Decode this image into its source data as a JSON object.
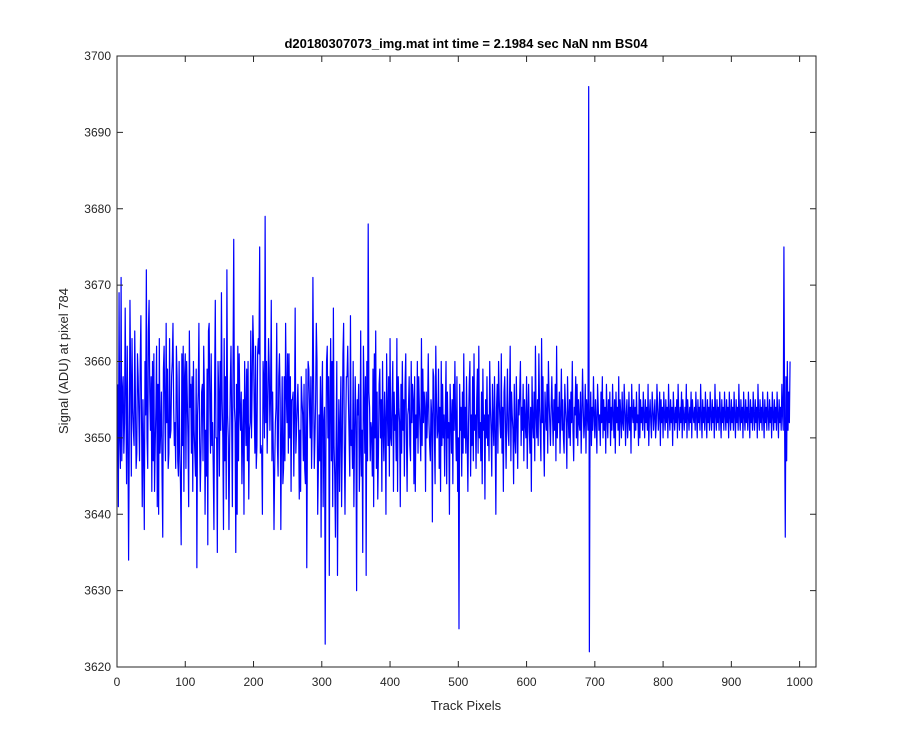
{
  "chart_data": {
    "type": "line",
    "title": "d20180307073_img.mat int time = 2.1984 sec  NaN nm BS04",
    "xlabel": "Track Pixels",
    "ylabel": "Signal (ADU) at pixel 784",
    "xlim": [
      0,
      1024
    ],
    "ylim": [
      3620,
      3700
    ],
    "xticks": [
      0,
      100,
      200,
      300,
      400,
      500,
      600,
      700,
      800,
      900,
      1000
    ],
    "yticks": [
      3620,
      3630,
      3640,
      3650,
      3660,
      3670,
      3680,
      3690,
      3700
    ],
    "grid": false,
    "line_color": "#0000ff",
    "n_points": 1024,
    "series": [
      {
        "name": "",
        "x_start": 1,
        "x_step": 1,
        "values": [
          3657,
          3641,
          3669,
          3650,
          3646,
          3671,
          3647,
          3656,
          3658,
          3648,
          3652,
          3667,
          3656,
          3644,
          3662,
          3650,
          3634,
          3650,
          3668,
          3658,
          3645,
          3663,
          3654,
          3651,
          3649,
          3664,
          3655,
          3646,
          3648,
          3661,
          3658,
          3653,
          3647,
          3660,
          3666,
          3652,
          3641,
          3655,
          3648,
          3638,
          3660,
          3653,
          3672,
          3650,
          3646,
          3664,
          3668,
          3656,
          3651,
          3658,
          3643,
          3660,
          3647,
          3661,
          3643,
          3649,
          3654,
          3662,
          3641,
          3657,
          3640,
          3663,
          3648,
          3651,
          3656,
          3645,
          3637,
          3659,
          3662,
          3654,
          3647,
          3665,
          3652,
          3659,
          3646,
          3648,
          3663,
          3650,
          3651,
          3658,
          3660,
          3665,
          3654,
          3649,
          3652,
          3646,
          3662,
          3658,
          3647,
          3645,
          3660,
          3648,
          3644,
          3636,
          3661,
          3649,
          3662,
          3643,
          3658,
          3661,
          3646,
          3660,
          3655,
          3650,
          3641,
          3664,
          3654,
          3657,
          3648,
          3658,
          3643,
          3660,
          3651,
          3648,
          3645,
          3659,
          3633,
          3653,
          3656,
          3665,
          3650,
          3643,
          3648,
          3656,
          3657,
          3647,
          3662,
          3656,
          3640,
          3651,
          3645,
          3659,
          3636,
          3664,
          3665,
          3654,
          3648,
          3661,
          3649,
          3652,
          3646,
          3638,
          3657,
          3668,
          3650,
          3650,
          3635,
          3660,
          3656,
          3645,
          3660,
          3651,
          3669,
          3655,
          3650,
          3638,
          3663,
          3647,
          3658,
          3642,
          3672,
          3653,
          3650,
          3638,
          3649,
          3657,
          3662,
          3652,
          3641,
          3660,
          3676,
          3654,
          3652,
          3635,
          3657,
          3640,
          3662,
          3647,
          3661,
          3654,
          3651,
          3656,
          3644,
          3650,
          3655,
          3640,
          3660,
          3654,
          3649,
          3659,
          3647,
          3660,
          3642,
          3651,
          3652,
          3664,
          3650,
          3657,
          3666,
          3662,
          3654,
          3648,
          3662,
          3646,
          3649,
          3661,
          3663,
          3661,
          3675,
          3648,
          3649,
          3648,
          3640,
          3660,
          3657,
          3650,
          3679,
          3652,
          3660,
          3648,
          3654,
          3663,
          3659,
          3651,
          3656,
          3668,
          3647,
          3656,
          3648,
          3638,
          3646,
          3652,
          3654,
          3665,
          3649,
          3645,
          3658,
          3661,
          3655,
          3638,
          3650,
          3658,
          3644,
          3646,
          3658,
          3647,
          3665,
          3656,
          3652,
          3661,
          3648,
          3661,
          3650,
          3658,
          3643,
          3655,
          3655,
          3656,
          3645,
          3653,
          3667,
          3648,
          3651,
          3654,
          3657,
          3652,
          3642,
          3651,
          3643,
          3658,
          3655,
          3653,
          3647,
          3657,
          3646,
          3644,
          3659,
          3633,
          3651,
          3660,
          3659,
          3654,
          3650,
          3658,
          3646,
          3652,
          3671,
          3658,
          3646,
          3650,
          3655,
          3665,
          3660,
          3640,
          3646,
          3653,
          3647,
          3658,
          3637,
          3655,
          3660,
          3641,
          3652,
          3654,
          3623,
          3648,
          3660,
          3662,
          3650,
          3658,
          3632,
          3655,
          3663,
          3647,
          3660,
          3641,
          3667,
          3649,
          3645,
          3637,
          3650,
          3660,
          3632,
          3647,
          3655,
          3643,
          3652,
          3658,
          3641,
          3649,
          3661,
          3665,
          3649,
          3640,
          3651,
          3658,
          3658,
          3662,
          3655,
          3650,
          3645,
          3666,
          3649,
          3651,
          3646,
          3660,
          3641,
          3650,
          3658,
          3652,
          3630,
          3655,
          3653,
          3657,
          3643,
          3648,
          3664,
          3645,
          3651,
          3635,
          3662,
          3655,
          3648,
          3658,
          3632,
          3660,
          3647,
          3678,
          3656,
          3654,
          3647,
          3652,
          3651,
          3645,
          3659,
          3641,
          3661,
          3650,
          3664,
          3646,
          3656,
          3642,
          3648,
          3657,
          3659,
          3650,
          3655,
          3643,
          3660,
          3651,
          3647,
          3656,
          3652,
          3640,
          3661,
          3654,
          3649,
          3658,
          3645,
          3663,
          3650,
          3649,
          3655,
          3660,
          3643,
          3656,
          3651,
          3653,
          3647,
          3663,
          3643,
          3658,
          3654,
          3652,
          3641,
          3657,
          3648,
          3660,
          3651,
          3655,
          3645,
          3657,
          3661,
          3650,
          3643,
          3653,
          3654,
          3658,
          3649,
          3647,
          3660,
          3652,
          3657,
          3655,
          3644,
          3658,
          3643,
          3653,
          3650,
          3660,
          3648,
          3658,
          3654,
          3651,
          3647,
          3663,
          3649,
          3659,
          3652,
          3656,
          3654,
          3643,
          3656,
          3650,
          3654,
          3661,
          3652,
          3649,
          3647,
          3655,
          3653,
          3639,
          3659,
          3658,
          3650,
          3644,
          3662,
          3655,
          3650,
          3651,
          3659,
          3646,
          3654,
          3643,
          3660,
          3649,
          3657,
          3650,
          3653,
          3645,
          3653,
          3660,
          3644,
          3656,
          3650,
          3652,
          3640,
          3657,
          3653,
          3648,
          3655,
          3644,
          3657,
          3651,
          3660,
          3652,
          3647,
          3658,
          3643,
          3650,
          3625,
          3657,
          3651,
          3654,
          3645,
          3656,
          3648,
          3661,
          3650,
          3654,
          3648,
          3658,
          3650,
          3643,
          3652,
          3657,
          3660,
          3645,
          3653,
          3649,
          3658,
          3647,
          3661,
          3651,
          3653,
          3646,
          3655,
          3659,
          3648,
          3662,
          3650,
          3652,
          3647,
          3656,
          3644,
          3659,
          3651,
          3653,
          3642,
          3655,
          3650,
          3658,
          3649,
          3653,
          3647,
          3660,
          3654,
          3651,
          3645,
          3657,
          3652,
          3649,
          3658,
          3651,
          3640,
          3654,
          3657,
          3648,
          3660,
          3655,
          3652,
          3650,
          3661,
          3648,
          3654,
          3643,
          3656,
          3658,
          3652,
          3646,
          3653,
          3659,
          3651,
          3649,
          3655,
          3662,
          3647,
          3656,
          3653,
          3651,
          3644,
          3657,
          3650,
          3648,
          3658,
          3652,
          3646,
          3655,
          3653,
          3656,
          3660,
          3649,
          3654,
          3651,
          3657,
          3647,
          3655,
          3652,
          3650,
          3658,
          3646,
          3653,
          3657,
          3651,
          3648,
          3654,
          3643,
          3658,
          3652,
          3650,
          3656,
          3647,
          3662,
          3653,
          3650,
          3655,
          3649,
          3661,
          3654,
          3651,
          3647,
          3663,
          3652,
          3658,
          3650,
          3645,
          3656,
          3653,
          3651,
          3657,
          3648,
          3660,
          3655,
          3652,
          3649,
          3654,
          3658,
          3653,
          3649,
          3655,
          3651,
          3657,
          3647,
          3662,
          3650,
          3654,
          3652,
          3656,
          3648,
          3653,
          3659,
          3651,
          3655,
          3650,
          3648,
          3657,
          3654,
          3652,
          3646,
          3658,
          3653,
          3650,
          3655,
          3649,
          3656,
          3652,
          3660,
          3651,
          3647,
          3654,
          3653,
          3658,
          3650,
          3657,
          3649,
          3655,
          3652,
          3651,
          3656,
          3648,
          3653,
          3659,
          3654,
          3650,
          3652,
          3657,
          3648,
          3655,
          3653,
          3651,
          3696,
          3622,
          3652,
          3656,
          3649,
          3654,
          3651,
          3658,
          3653,
          3650,
          3655,
          3652,
          3648,
          3657,
          3654,
          3651,
          3653,
          3649,
          3656,
          3652,
          3658,
          3650,
          3655,
          3651,
          3654,
          3648,
          3657,
          3653,
          3650,
          3655,
          3652,
          3656,
          3649,
          3654,
          3651,
          3657,
          3653,
          3650,
          3655,
          3648,
          3656,
          3652,
          3654,
          3651,
          3658,
          3649,
          3655,
          3653,
          3650,
          3656,
          3652,
          3651,
          3657,
          3654,
          3649,
          3653,
          3655,
          3650,
          3652,
          3656,
          3651,
          3654,
          3648,
          3657,
          3653,
          3652,
          3655,
          3650,
          3654,
          3651,
          3656,
          3652,
          3653,
          3649,
          3657,
          3650,
          3655,
          3652,
          3654,
          3651,
          3656,
          3653,
          3650,
          3655,
          3652,
          3654,
          3651,
          3657,
          3649,
          3653,
          3655,
          3652,
          3650,
          3656,
          3654,
          3651,
          3653,
          3655,
          3650,
          3652,
          3657,
          3654,
          3651,
          3653,
          3656,
          3649,
          3655,
          3652,
          3654,
          3650,
          3656,
          3653,
          3651,
          3655,
          3652,
          3654,
          3650,
          3657,
          3653,
          3651,
          3655,
          3652,
          3654,
          3649,
          3656,
          3653,
          3651,
          3654,
          3652,
          3655,
          3650,
          3657,
          3653,
          3651,
          3654,
          3652,
          3656,
          3650,
          3655,
          3653,
          3651,
          3654,
          3652,
          3657,
          3650,
          3655,
          3653,
          3651,
          3654,
          3652,
          3656,
          3650,
          3655,
          3653,
          3652,
          3654,
          3651,
          3656,
          3653,
          3650,
          3655,
          3652,
          3654,
          3651,
          3657,
          3653,
          3650,
          3655,
          3652,
          3654,
          3651,
          3656,
          3653,
          3650,
          3655,
          3652,
          3654,
          3651,
          3656,
          3653,
          3651,
          3655,
          3652,
          3654,
          3650,
          3657,
          3653,
          3651,
          3655,
          3652,
          3654,
          3651,
          3656,
          3653,
          3650,
          3655,
          3652,
          3654,
          3651,
          3656,
          3653,
          3651,
          3655,
          3652,
          3654,
          3650,
          3656,
          3653,
          3651,
          3655,
          3652,
          3654,
          3651,
          3656,
          3653,
          3650,
          3655,
          3652,
          3654,
          3651,
          3657,
          3653,
          3651,
          3655,
          3652,
          3654,
          3650,
          3656,
          3653,
          3651,
          3655,
          3652,
          3654,
          3651,
          3656,
          3653,
          3650,
          3655,
          3652,
          3654,
          3651,
          3656,
          3653,
          3651,
          3655,
          3652,
          3654,
          3650,
          3657,
          3653,
          3651,
          3655,
          3652,
          3654,
          3651,
          3656,
          3653,
          3650,
          3655,
          3652,
          3654,
          3651,
          3656,
          3653,
          3651,
          3655,
          3652,
          3654,
          3650,
          3656,
          3653,
          3651,
          3655,
          3652,
          3654,
          3651,
          3656,
          3653,
          3650,
          3655,
          3652,
          3654,
          3651,
          3657,
          3653,
          3651,
          3675,
          3652,
          3637,
          3658,
          3647,
          3660,
          3651,
          3656,
          3652,
          3660
        ]
      }
    ]
  }
}
